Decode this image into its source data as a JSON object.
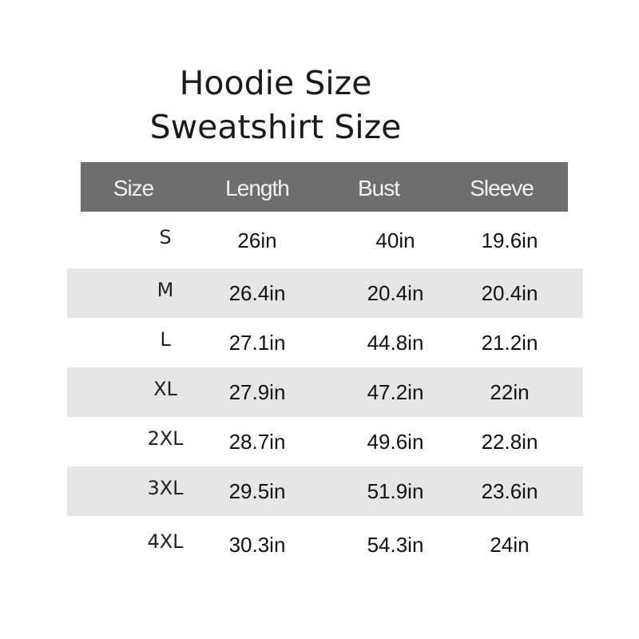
{
  "title": {
    "line1": "Hoodie  Size",
    "line2": "Sweatshirt  Size"
  },
  "table": {
    "headers": [
      "Size",
      "Length",
      "Bust",
      "Sleeve"
    ],
    "header_color": "#6e6e6e",
    "stripe_color": "#e6e6e6",
    "rows": [
      [
        "S",
        "26in",
        "40in",
        "19.6in"
      ],
      [
        "M",
        "26.4in",
        "20.4in",
        "20.4in"
      ],
      [
        "L",
        "27.1in",
        "44.8in",
        "21.2in"
      ],
      [
        "XL",
        "27.9in",
        "47.2in",
        "22in"
      ],
      [
        "2XL",
        "28.7in",
        "49.6in",
        "22.8in"
      ],
      [
        "3XL",
        "29.5in",
        "51.9in",
        "23.6in"
      ],
      [
        "4XL",
        "30.3in",
        "54.3in",
        "24in"
      ]
    ]
  }
}
